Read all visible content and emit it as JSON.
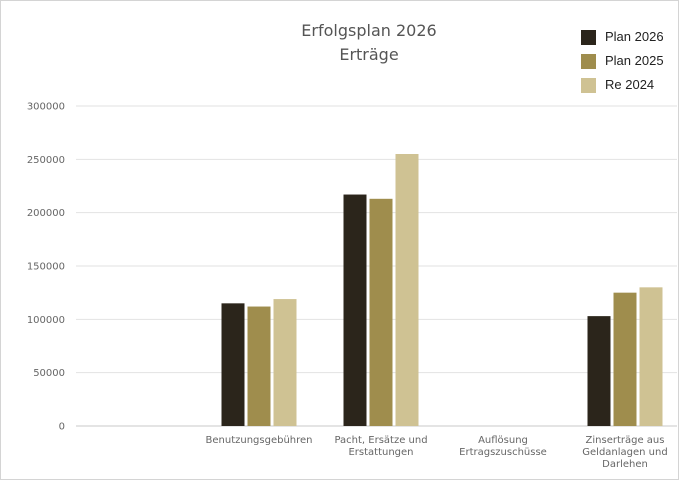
{
  "chart_data": {
    "type": "bar",
    "title": "Erfolgsplan 2026",
    "subtitle": "Erträge",
    "categories": [
      [
        "Benutzungsgebühren"
      ],
      [
        "Pacht, Ersätze und",
        "Erstattungen"
      ],
      [
        "Auflösung",
        "Ertragszuschüsse"
      ],
      [
        "Zinserträge aus",
        "Geldanlagen und",
        "Darlehen"
      ]
    ],
    "series": [
      {
        "name": "Plan 2026",
        "color": "#2b251b",
        "values": [
          115000,
          217000,
          0,
          103000
        ]
      },
      {
        "name": "Plan 2025",
        "color": "#9f8d4d",
        "values": [
          112000,
          213000,
          0,
          125000
        ]
      },
      {
        "name": "Re 2024",
        "color": "#cfc293",
        "values": [
          119000,
          255000,
          0,
          130000
        ]
      }
    ],
    "y_ticks": [
      "0",
      "50000",
      "100000",
      "150000",
      "200000",
      "250000",
      "300000"
    ],
    "ylim": [
      0,
      300000
    ],
    "grid": true,
    "legend_position": "top-right"
  }
}
